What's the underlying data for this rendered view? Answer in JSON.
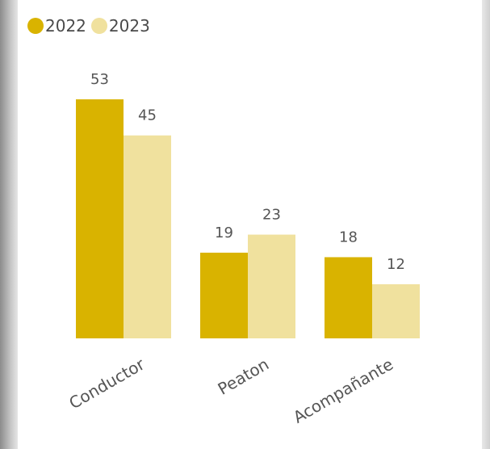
{
  "chart_data": {
    "type": "bar",
    "categories": [
      "Conductor",
      "Peaton",
      "Acompañante"
    ],
    "series": [
      {
        "name": "2022",
        "values": [
          53,
          19,
          18
        ],
        "color": "#D9B300"
      },
      {
        "name": "2023",
        "values": [
          45,
          23,
          12
        ],
        "color": "#F0E19E"
      }
    ],
    "title": "",
    "xlabel": "",
    "ylabel": "",
    "ylim": [
      0,
      53
    ],
    "grid": false,
    "legend": "top-left"
  }
}
